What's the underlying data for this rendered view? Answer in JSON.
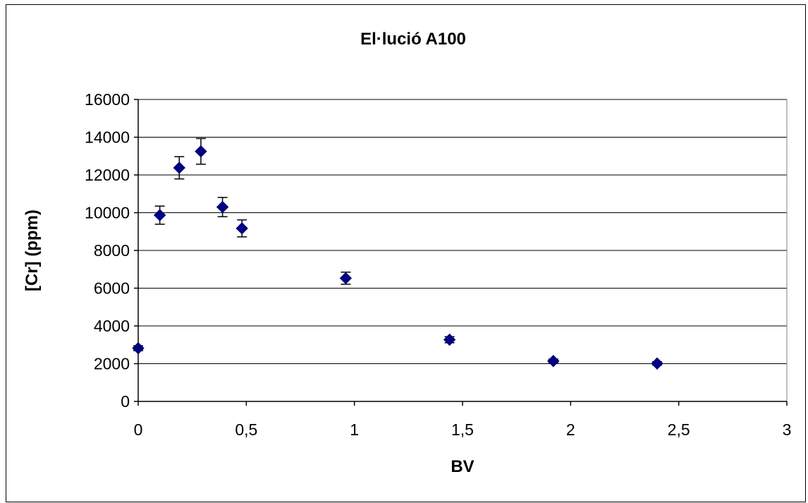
{
  "chart_data": {
    "type": "scatter",
    "title": "El·lució A100",
    "xlabel": "BV",
    "ylabel": "[Cr] (ppm)",
    "xlim": [
      0,
      3
    ],
    "ylim": [
      0,
      16000
    ],
    "x_ticks": [
      "0",
      "0,5",
      "1",
      "1,5",
      "2",
      "2,5",
      "3"
    ],
    "x_tick_values": [
      0,
      0.5,
      1,
      1.5,
      2,
      2.5,
      3
    ],
    "y_ticks": [
      "0",
      "2000",
      "4000",
      "6000",
      "8000",
      "10000",
      "12000",
      "14000",
      "16000"
    ],
    "y_tick_values": [
      0,
      2000,
      4000,
      6000,
      8000,
      10000,
      12000,
      14000,
      16000
    ],
    "grid": "horizontal",
    "legend": "none",
    "marker": "diamond",
    "marker_color": "#000080",
    "points": [
      {
        "x": 0.0,
        "y": 2820,
        "err": 130
      },
      {
        "x": 0.1,
        "y": 9870,
        "err": 480
      },
      {
        "x": 0.19,
        "y": 12380,
        "err": 590
      },
      {
        "x": 0.29,
        "y": 13250,
        "err": 680
      },
      {
        "x": 0.39,
        "y": 10300,
        "err": 510
      },
      {
        "x": 0.48,
        "y": 9170,
        "err": 450
      },
      {
        "x": 0.96,
        "y": 6530,
        "err": 320
      },
      {
        "x": 1.44,
        "y": 3270,
        "err": 160
      },
      {
        "x": 1.92,
        "y": 2140,
        "err": 100
      },
      {
        "x": 2.4,
        "y": 2010,
        "err": 90
      }
    ]
  }
}
